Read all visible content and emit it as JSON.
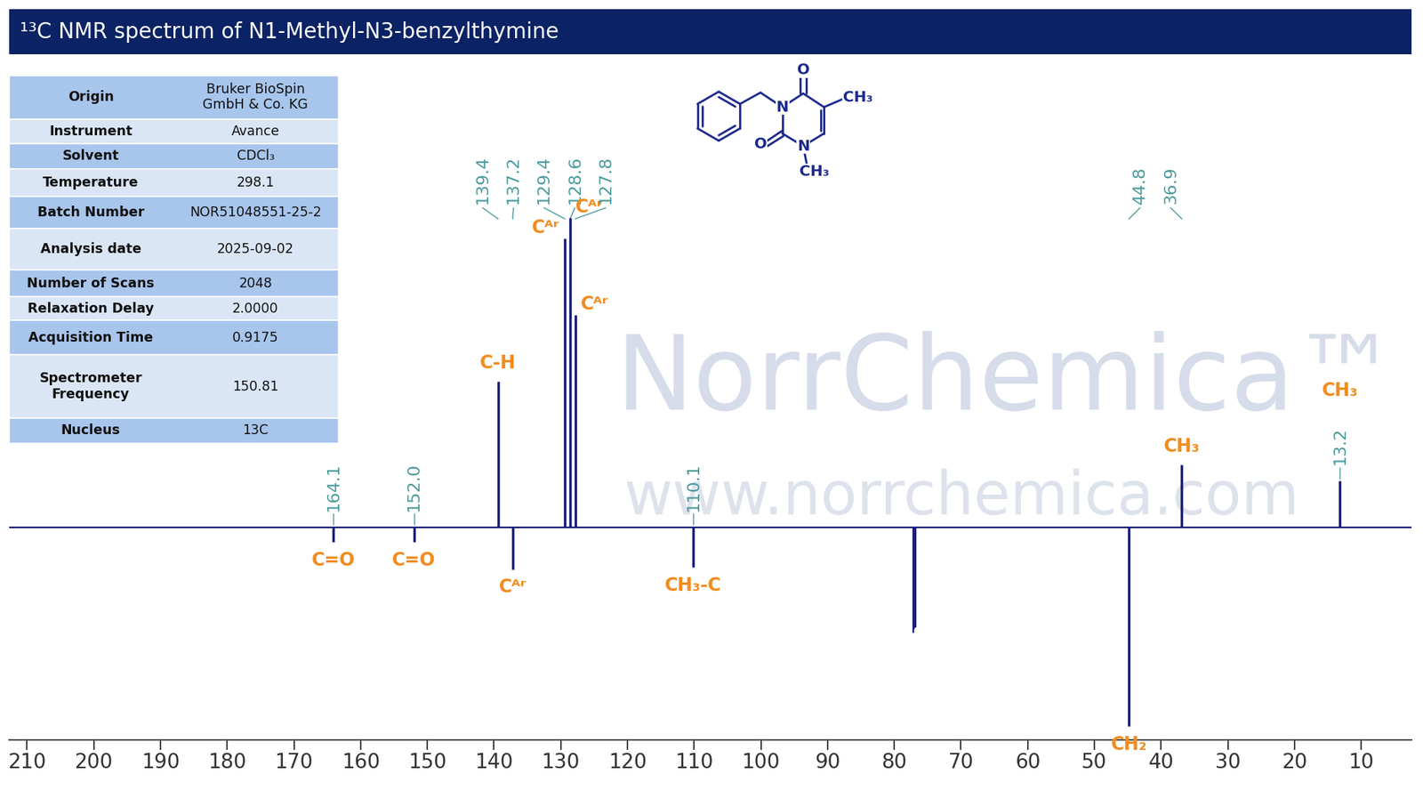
{
  "header": {
    "title": "¹³C NMR spectrum of N1-Methyl-N3-benzylthymine"
  },
  "info_table": [
    [
      "Origin",
      "Bruker BioSpin\nGmbH & Co. KG"
    ],
    [
      "Instrument",
      "Avance"
    ],
    [
      "Solvent",
      "CDCl₃"
    ],
    [
      "Temperature",
      "298.1"
    ],
    [
      "Batch Number",
      "NOR51048551-25-2"
    ],
    [
      "Analysis date",
      "2025-09-02"
    ],
    [
      "Number of Scans",
      "2048"
    ],
    [
      "Relaxation Delay",
      "2.0000"
    ],
    [
      "Acquisition Time",
      "0.9175"
    ],
    [
      "Spectrometer\nFrequency",
      "150.81"
    ],
    [
      "Nucleus",
      "13C"
    ]
  ],
  "structure": {
    "atoms": [
      "O",
      "N",
      "CH₃",
      "O",
      "N",
      "CH₃"
    ]
  },
  "watermark": [
    "NorrChemica™",
    "www.norrchemica.com"
  ],
  "chart_data": {
    "type": "nmr_spectrum",
    "xlim": [
      212.7,
      2.5
    ],
    "xticks": [
      210,
      200,
      190,
      180,
      170,
      160,
      150,
      140,
      130,
      120,
      110,
      100,
      90,
      80,
      70,
      60,
      50,
      40,
      30,
      20,
      10
    ],
    "ylim": [
      -234,
      501
    ],
    "tick_labels": "x",
    "data_labels": true,
    "peaks": [
      {
        "x": 164.1,
        "intensity": -16,
        "assignment": "C=O"
      },
      {
        "x": 152.0,
        "intensity": -16,
        "assignment": "C=O"
      },
      {
        "x": 139.4,
        "intensity": 161,
        "assignment": "C-H"
      },
      {
        "x": 137.2,
        "intensity": -46,
        "assignment": "Cᴬʳ"
      },
      {
        "x": 129.4,
        "intensity": 318,
        "assignment": "Cᴬʳ"
      },
      {
        "x": 128.6,
        "intensity": 341,
        "assignment": "Cᴬʳ"
      },
      {
        "x": 127.8,
        "intensity": 234,
        "assignment": "Cᴬʳ"
      },
      {
        "x": 110.1,
        "intensity": -44,
        "assignment": "CH₃-C"
      },
      {
        "x": 44.8,
        "intensity": -219,
        "assignment": "CH₂"
      },
      {
        "x": 36.9,
        "intensity": 69,
        "assignment": "CH₃"
      },
      {
        "x": 13.2,
        "intensity": 51,
        "assignment": "CH₃"
      }
    ],
    "unlabeled_peaks": [
      {
        "x": 77.2,
        "intensity": -116
      },
      {
        "x": 77.0,
        "intensity": -112
      },
      {
        "x": 76.8,
        "intensity": -110
      }
    ]
  }
}
